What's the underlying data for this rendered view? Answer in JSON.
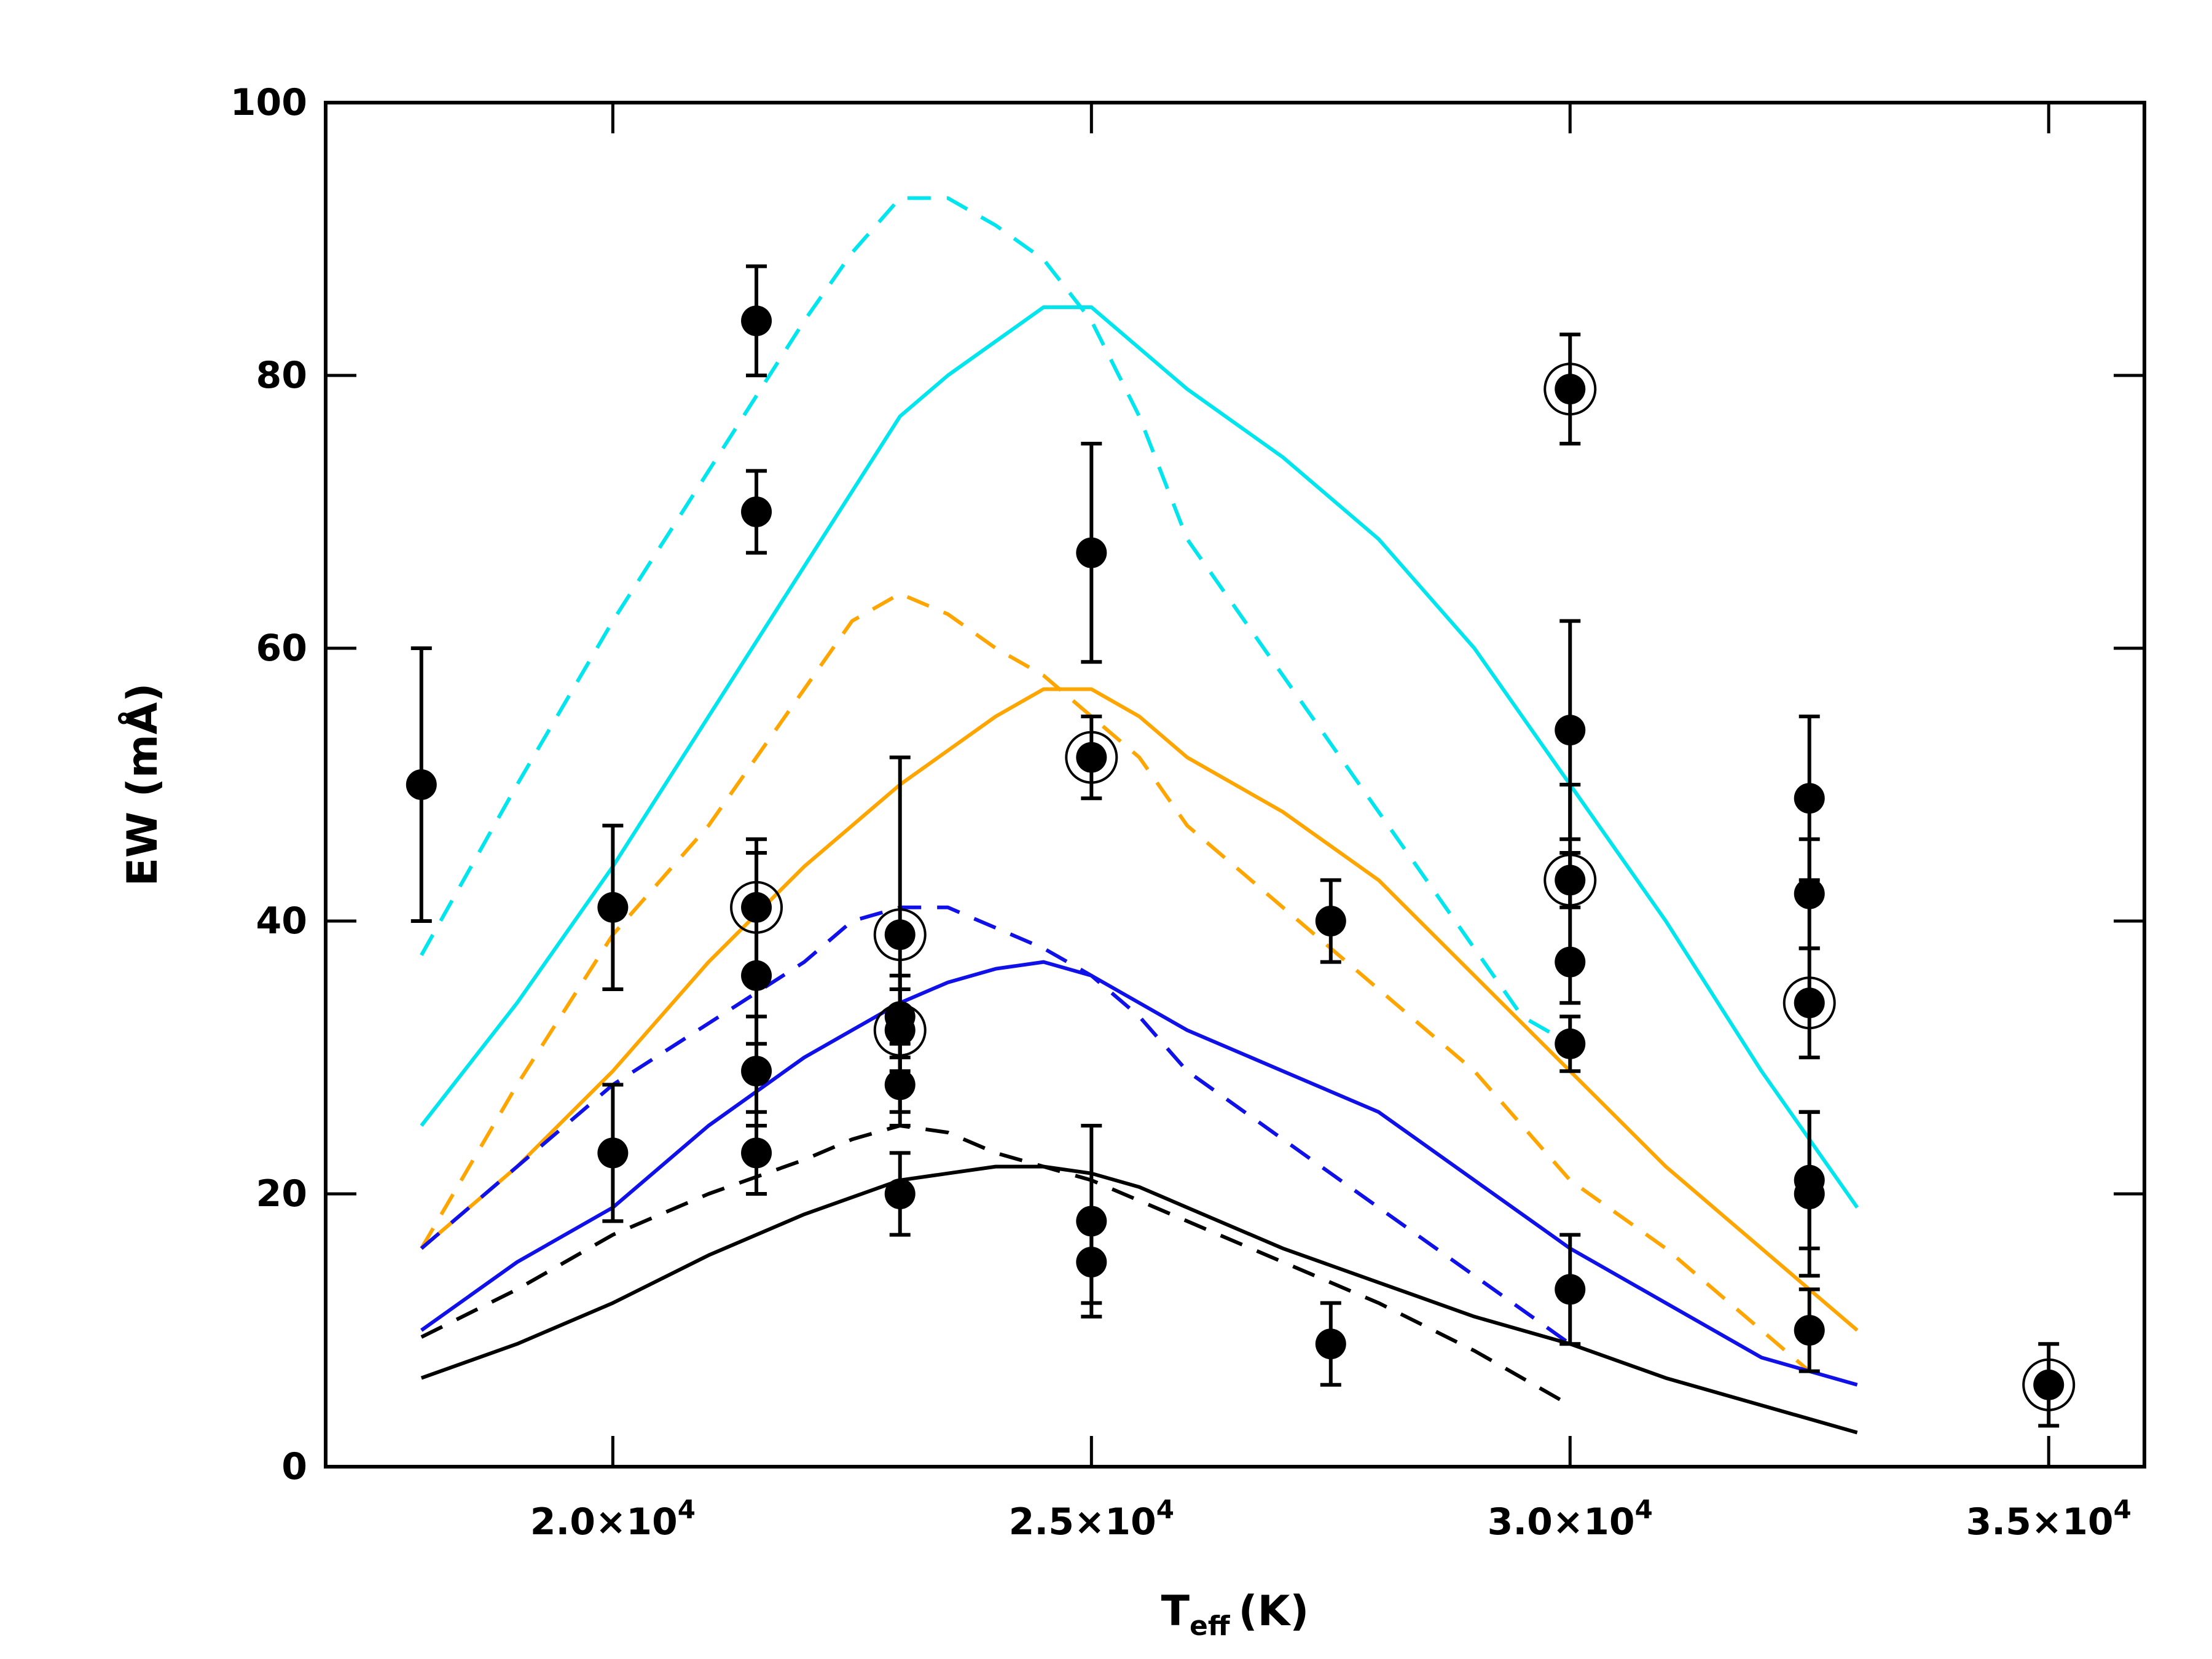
{
  "chart_data": {
    "type": "scatter",
    "title": "",
    "xlabel": {
      "main": "T",
      "sub": "eff",
      "unit": "(K)"
    },
    "ylabel": "EW (mÅ)",
    "xlim": [
      17000,
      36000
    ],
    "ylim": [
      0,
      100
    ],
    "yticks": [
      {
        "value": 0,
        "label": "0"
      },
      {
        "value": 20,
        "label": "20"
      },
      {
        "value": 40,
        "label": "40"
      },
      {
        "value": 60,
        "label": "60"
      },
      {
        "value": 80,
        "label": "80"
      },
      {
        "value": 100,
        "label": "100"
      }
    ],
    "xticks": [
      {
        "value": 20000,
        "mantissa": "2.0×10",
        "exponent": "4"
      },
      {
        "value": 25000,
        "mantissa": "2.5×10",
        "exponent": "4"
      },
      {
        "value": 30000,
        "mantissa": "3.0×10",
        "exponent": "4"
      },
      {
        "value": 35000,
        "mantissa": "3.5×10",
        "exponent": "4"
      }
    ],
    "points": [
      {
        "x": 18000,
        "y": 50,
        "lo": 40,
        "hi": 60,
        "circled": false
      },
      {
        "x": 20000,
        "y": 41,
        "lo": 35,
        "hi": 47,
        "circled": false
      },
      {
        "x": 20000,
        "y": 23,
        "lo": 18,
        "hi": 28,
        "circled": false
      },
      {
        "x": 21500,
        "y": 84,
        "lo": 80,
        "hi": 88,
        "circled": false
      },
      {
        "x": 21500,
        "y": 70,
        "lo": 67,
        "hi": 73,
        "circled": false
      },
      {
        "x": 21500,
        "y": 41,
        "lo": 36,
        "hi": 46,
        "circled": true
      },
      {
        "x": 21500,
        "y": 36,
        "lo": 31,
        "hi": 45,
        "circled": false
      },
      {
        "x": 21500,
        "y": 29,
        "lo": 25,
        "hi": 33,
        "circled": false
      },
      {
        "x": 21500,
        "y": 23,
        "lo": 20,
        "hi": 26,
        "circled": false
      },
      {
        "x": 23000,
        "y": 39,
        "lo": 26,
        "hi": 52,
        "circled": true
      },
      {
        "x": 23000,
        "y": 33,
        "lo": 30,
        "hi": 36,
        "circled": false
      },
      {
        "x": 23000,
        "y": 32,
        "lo": 29,
        "hi": 35,
        "circled": true
      },
      {
        "x": 23000,
        "y": 28,
        "lo": 25,
        "hi": 31,
        "circled": false
      },
      {
        "x": 23000,
        "y": 20,
        "lo": 17,
        "hi": 23,
        "circled": false
      },
      {
        "x": 25000,
        "y": 67,
        "lo": 59,
        "hi": 75,
        "circled": false
      },
      {
        "x": 25000,
        "y": 52,
        "lo": 49,
        "hi": 55,
        "circled": true
      },
      {
        "x": 25000,
        "y": 18,
        "lo": 11,
        "hi": 25,
        "circled": false
      },
      {
        "x": 25000,
        "y": 15,
        "lo": 12,
        "hi": 18,
        "circled": false
      },
      {
        "x": 27500,
        "y": 40,
        "lo": 37,
        "hi": 43,
        "circled": false
      },
      {
        "x": 27500,
        "y": 9,
        "lo": 6,
        "hi": 12,
        "circled": false
      },
      {
        "x": 30000,
        "y": 79,
        "lo": 75,
        "hi": 83,
        "circled": true
      },
      {
        "x": 30000,
        "y": 54,
        "lo": 46,
        "hi": 62,
        "circled": false
      },
      {
        "x": 30000,
        "y": 43,
        "lo": 41,
        "hi": 45,
        "circled": true
      },
      {
        "x": 30000,
        "y": 37,
        "lo": 34,
        "hi": 50,
        "circled": false
      },
      {
        "x": 30000,
        "y": 31,
        "lo": 29,
        "hi": 33,
        "circled": false
      },
      {
        "x": 30000,
        "y": 13,
        "lo": 9,
        "hi": 17,
        "circled": false
      },
      {
        "x": 32500,
        "y": 49,
        "lo": 43,
        "hi": 55,
        "circled": false
      },
      {
        "x": 32500,
        "y": 42,
        "lo": 38,
        "hi": 46,
        "circled": false
      },
      {
        "x": 32500,
        "y": 34,
        "lo": 30,
        "hi": 38,
        "circled": true
      },
      {
        "x": 32500,
        "y": 21,
        "lo": 16,
        "hi": 26,
        "circled": false
      },
      {
        "x": 32500,
        "y": 20,
        "lo": 14,
        "hi": 26,
        "circled": false
      },
      {
        "x": 32500,
        "y": 10,
        "lo": 7,
        "hi": 13,
        "circled": false
      },
      {
        "x": 35000,
        "y": 6,
        "lo": 3,
        "hi": 9,
        "circled": true
      }
    ],
    "series": [
      {
        "name": "cyan-dashed",
        "color": "#00e5ee",
        "dashed": true,
        "x": [
          18000,
          19000,
          20000,
          21000,
          22000,
          22500,
          23000,
          23500,
          24000,
          24500,
          25000,
          25500,
          26000,
          27000,
          28000,
          29000,
          29500,
          30000
        ],
        "y": [
          37.5,
          50,
          62,
          73,
          84,
          89,
          93,
          93,
          91,
          88.5,
          84,
          77,
          68,
          58,
          48,
          38,
          33,
          31
        ]
      },
      {
        "name": "cyan-solid",
        "color": "#00e5ee",
        "dashed": false,
        "x": [
          18000,
          19000,
          20000,
          21000,
          22000,
          22500,
          23000,
          23500,
          24000,
          24500,
          25000,
          25500,
          26000,
          27000,
          28000,
          29000,
          30000,
          31000,
          32000,
          33000
        ],
        "y": [
          25,
          34,
          44,
          55,
          66,
          71.5,
          77,
          80,
          82.5,
          85,
          85,
          82,
          79,
          74,
          68,
          60,
          50,
          40,
          29,
          19
        ]
      },
      {
        "name": "orange-dashed",
        "color": "#ffa500",
        "dashed": true,
        "x": [
          18000,
          19000,
          20000,
          21000,
          22000,
          22500,
          23000,
          23500,
          24000,
          24500,
          25000,
          25500,
          26000,
          27000,
          28000,
          29000,
          30000,
          31000,
          32500
        ],
        "y": [
          16,
          28,
          39,
          47,
          57,
          62,
          64,
          62.5,
          60,
          58,
          55,
          52,
          47,
          41,
          35,
          29,
          21,
          16,
          7
        ]
      },
      {
        "name": "orange-solid",
        "color": "#ffa500",
        "dashed": false,
        "x": [
          18000,
          19000,
          20000,
          21000,
          22000,
          23000,
          24000,
          24500,
          25000,
          25500,
          26000,
          27000,
          28000,
          29000,
          30000,
          31000,
          32000,
          33000
        ],
        "y": [
          16,
          22,
          29,
          37,
          44,
          50,
          55,
          57,
          57,
          55,
          52,
          48,
          43,
          36,
          29,
          22,
          16,
          10
        ]
      },
      {
        "name": "blue-dashed",
        "color": "#1010e8",
        "dashed": true,
        "x": [
          18000,
          19000,
          20000,
          21000,
          22000,
          22500,
          23000,
          23500,
          24000,
          24500,
          25000,
          25500,
          26000,
          27000,
          28000,
          29000,
          30000
        ],
        "y": [
          16,
          22,
          28,
          32.5,
          37,
          40,
          41,
          41,
          39.5,
          38,
          36,
          33,
          29,
          24,
          19,
          14,
          9
        ]
      },
      {
        "name": "blue-solid",
        "color": "#1010e8",
        "dashed": false,
        "x": [
          18000,
          19000,
          20000,
          21000,
          22000,
          23000,
          23500,
          24000,
          24500,
          25000,
          25500,
          26000,
          27000,
          28000,
          29000,
          30000,
          31000,
          32000,
          32500,
          33000
        ],
        "y": [
          10,
          15,
          19,
          25,
          30,
          34,
          35.5,
          36.5,
          37,
          36,
          34,
          32,
          29,
          26,
          21,
          16,
          12,
          8,
          7,
          6
        ]
      },
      {
        "name": "black-dashed",
        "color": "#000000",
        "dashed": true,
        "x": [
          18000,
          19000,
          20000,
          21000,
          22000,
          22500,
          23000,
          23500,
          24000,
          24500,
          25000,
          25500,
          26000,
          27000,
          28000,
          29000,
          30000
        ],
        "y": [
          9.5,
          13,
          17,
          20,
          22.5,
          24,
          25,
          24.5,
          23,
          22,
          21,
          19.5,
          18,
          15,
          12,
          8.5,
          4.5
        ]
      },
      {
        "name": "black-solid",
        "color": "#000000",
        "dashed": false,
        "x": [
          18000,
          19000,
          20000,
          21000,
          22000,
          23000,
          23500,
          24000,
          24500,
          25000,
          25500,
          26000,
          27000,
          28000,
          29000,
          30000,
          31000,
          32000,
          33000
        ],
        "y": [
          6.5,
          9,
          12,
          15.5,
          18.5,
          21,
          21.5,
          22,
          22,
          21.5,
          20.5,
          19,
          16,
          13.5,
          11,
          9,
          6.5,
          4.5,
          2.5
        ]
      }
    ]
  }
}
